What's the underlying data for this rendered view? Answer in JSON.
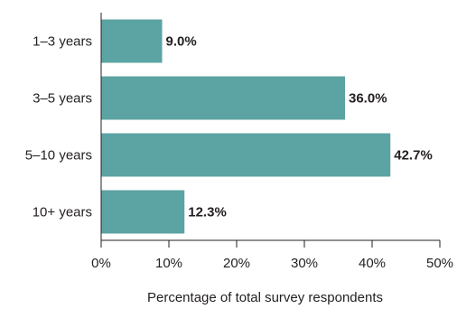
{
  "chart_data": {
    "type": "bar",
    "orientation": "horizontal",
    "categories": [
      "1–3 years",
      "3–5 years",
      "5–10 years",
      "10+ years"
    ],
    "values": [
      9.0,
      36.0,
      42.7,
      12.3
    ],
    "value_labels": [
      "9.0%",
      "36.0%",
      "42.7%",
      "12.3%"
    ],
    "xlabel": "Percentage of total survey respondents",
    "ylabel": "",
    "xlim": [
      0,
      50
    ],
    "xticks": [
      0,
      10,
      20,
      30,
      40,
      50
    ],
    "xtick_labels": [
      "0%",
      "10%",
      "20%",
      "30%",
      "40%",
      "50%"
    ],
    "grid": false,
    "bar_color": "#5ca3a3",
    "axis_color": "#231f20"
  }
}
